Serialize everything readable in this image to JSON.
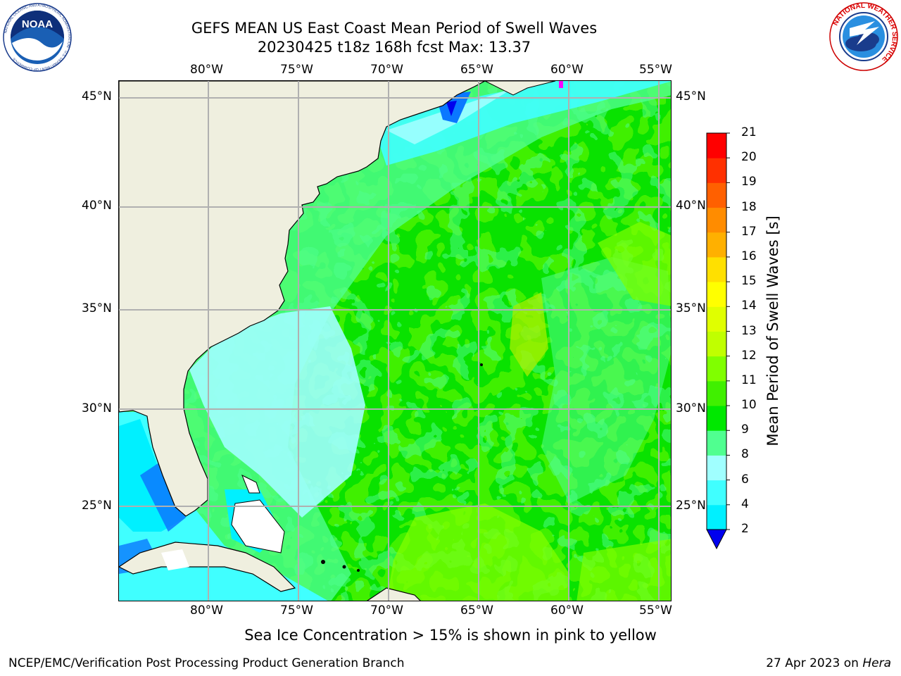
{
  "header": {
    "title_line1": "GEFS MEAN US East Coast Mean Period of Swell Waves",
    "title_line2": "20230425 t18z 168h fcst   Max: 13.37"
  },
  "logos": {
    "left": "NOAA",
    "left_ring": "NATIONAL OCEANIC AND ATMOSPHERIC ADMINISTRATION · U.S. DEPARTMENT OF COMMERCE",
    "right_ring": "NATIONAL WEATHER SERVICE"
  },
  "map": {
    "lon_labels": [
      "80°W",
      "75°W",
      "70°W",
      "65°W",
      "60°W",
      "55°W"
    ],
    "lat_labels": [
      "45°N",
      "40°N",
      "35°N",
      "30°N",
      "25°N"
    ],
    "colors": {
      "land": "#efefdf",
      "grid": "#b0b0b0"
    }
  },
  "colorbar": {
    "title": "Mean Period of Swell Waves [s]",
    "levels": [
      "2",
      "4",
      "6",
      "8",
      "9",
      "10",
      "11",
      "12",
      "13",
      "14",
      "15",
      "16",
      "17",
      "18",
      "19",
      "20",
      "21"
    ],
    "colors": [
      "#0a78ff",
      "#00f0ff",
      "#40ffff",
      "#a0ffff",
      "#50ff90",
      "#00e800",
      "#40f000",
      "#80ff00",
      "#c0ff00",
      "#e0ff00",
      "#ffff00",
      "#ffe000",
      "#ffb000",
      "#ff8c00",
      "#ff6000",
      "#ff3000",
      "#ff0000"
    ],
    "underflow_color": "#0000ee"
  },
  "note": "Sea Ice Concentration > 15% is shown in pink to yellow",
  "footer": {
    "left": "NCEP/EMC/Verification Post Processing Product Generation Branch",
    "right_date": "27 Apr 2023 on ",
    "right_host": "Hera"
  }
}
